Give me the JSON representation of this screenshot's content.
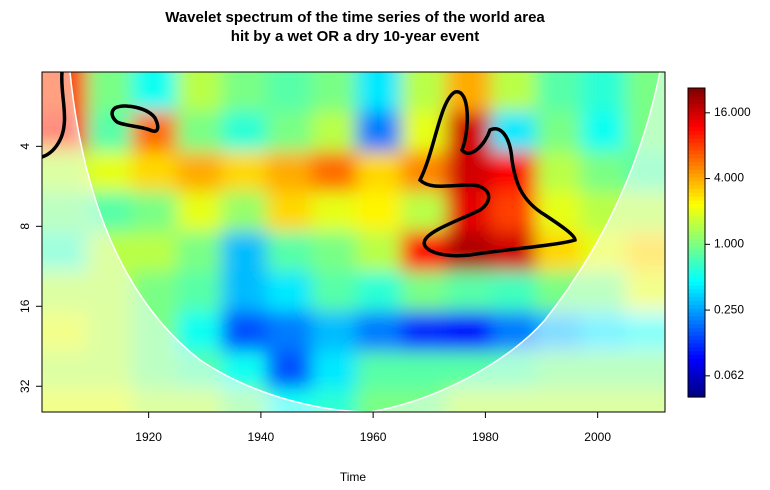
{
  "chart_data": {
    "type": "heatmap",
    "title": [
      "Wavelet spectrum of the time series of the world area",
      "hit by a wet OR a dry 10-year event"
    ],
    "x_label": "Time",
    "x": [
      1905,
      1913,
      1921,
      1929,
      1937,
      1945,
      1953,
      1961,
      1969,
      1977,
      1985,
      1993,
      2001,
      2009
    ],
    "periods": [
      2.5,
      3.5,
      5,
      7,
      10,
      14,
      20,
      28,
      38
    ],
    "power": [
      [
        8,
        1,
        0.5,
        1.5,
        1,
        0.8,
        1,
        0.4,
        1.5,
        4,
        1.5,
        0.8,
        0.6,
        1
      ],
      [
        10,
        0.8,
        6,
        1,
        0.6,
        1,
        1.5,
        0.2,
        2,
        16,
        0.4,
        1,
        0.5,
        1
      ],
      [
        1.5,
        2,
        3,
        4,
        3,
        4,
        6,
        3,
        5,
        16,
        12,
        1.5,
        1,
        0.8
      ],
      [
        1,
        0.8,
        1,
        2,
        1.2,
        3,
        2,
        2.5,
        1.5,
        14,
        8,
        2,
        1.5,
        1.5
      ],
      [
        0.7,
        1.5,
        1.5,
        1,
        0.3,
        0.8,
        1,
        1.5,
        12,
        20,
        16,
        3,
        2,
        3
      ],
      [
        1.5,
        1.5,
        1,
        0.8,
        0.3,
        0.4,
        0.8,
        0.6,
        1,
        0.8,
        0.7,
        1,
        1,
        2
      ],
      [
        2,
        1.5,
        1,
        0.5,
        0.15,
        0.2,
        0.3,
        0.2,
        0.12,
        0.1,
        0.2,
        0.3,
        0.4,
        0.5
      ],
      [
        1.5,
        1.5,
        1,
        0.8,
        0.5,
        0.15,
        0.4,
        0.8,
        0.8,
        0.8,
        0.8,
        1,
        1,
        1
      ],
      [
        2,
        2,
        1.5,
        1.5,
        1,
        0.5,
        0.6,
        1,
        1,
        1.5,
        1.5,
        1.5,
        1.5,
        1.5
      ]
    ],
    "xlim": [
      1901,
      2012
    ],
    "xticks": [
      1920,
      1940,
      1960,
      1980,
      2000
    ],
    "ylim": [
      2.1,
      40
    ],
    "yticks": [
      4,
      8,
      16,
      32
    ],
    "y_log": true,
    "y_reversed": true,
    "colors": [
      "#00007f",
      "#0000ff",
      "#007fff",
      "#00ffff",
      "#7fff7f",
      "#ffff00",
      "#ff7f00",
      "#ff0000",
      "#7f0000"
    ],
    "colorbar": {
      "lim": [
        0.04,
        27
      ],
      "log": true,
      "ticks": [
        {
          "value": 0.0625,
          "label": "0.062"
        },
        {
          "value": 0.25,
          "label": "0.250"
        },
        {
          "value": 1,
          "label": "1.000"
        },
        {
          "value": 4,
          "label": "4.000"
        },
        {
          "value": 16,
          "label": "16.000"
        }
      ]
    }
  }
}
